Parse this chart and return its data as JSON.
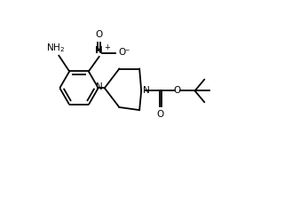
{
  "background": "#ffffff",
  "line_color": "#000000",
  "lw": 1.3,
  "figsize": [
    3.2,
    2.38
  ],
  "dpi": 100,
  "xlim": [
    0.0,
    8.0
  ],
  "ylim": [
    0.0,
    6.0
  ]
}
